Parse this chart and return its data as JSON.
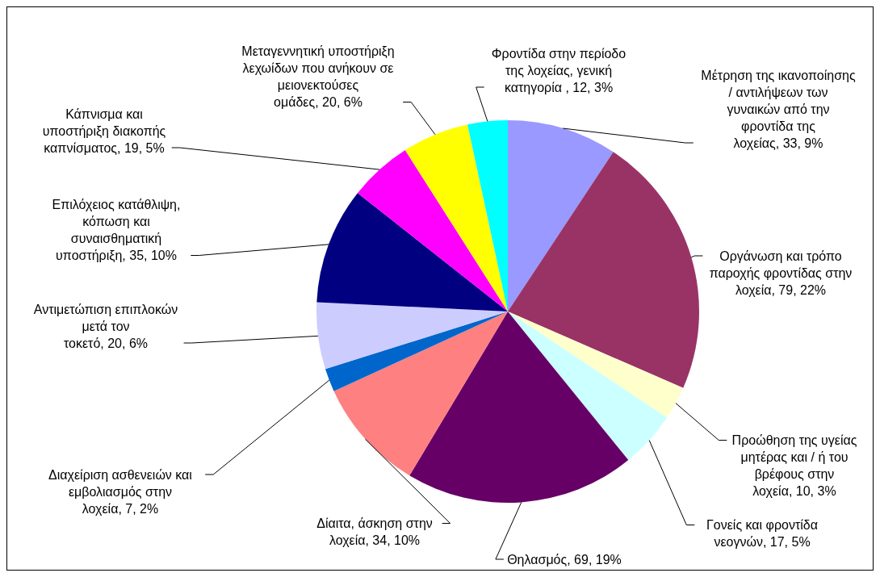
{
  "chart_data": {
    "type": "pie",
    "categories": [
      "Μέτρηση της ικανοποίησης / αντιλήψεων των γυναικών από την φροντίδα της λοχείας",
      "Οργάνωση και τρόπο παροχής φροντίδας στην λοχεία",
      "Προώθηση της υγείας μητέρας και / ή του βρέφους στην λοχεία",
      "Γονείς και φροντίδα νεογνών",
      "Θηλασμός",
      "Δίαιτα, άσκηση στην λοχεία",
      "Διαχείριση ασθενειών και εμβολιασμός στην λοχεία",
      "Αντιμετώπιση επιπλοκών μετά τον τοκετό",
      "Επιλόχειος κατάθλιψη, κόπωση και συναισθηματική υποστήριξη",
      "Κάπνισμα και υποστήριξη διακοπής καπνίσματος",
      "Μεταγεννητική υποστήριξη λεχωίδων που ανήκουν σε μειονεκτούσες ομάδες",
      "Φροντίδα στην περίοδο της λοχείας, γενική κατηγορία "
    ],
    "values": [
      33,
      79,
      10,
      17,
      69,
      34,
      7,
      20,
      35,
      19,
      20,
      12
    ],
    "value_labels": [
      "33, 9%",
      "79, 22%",
      "10, 3%",
      "17, 5%",
      "69, 19%",
      "34, 10%",
      "7, 2%",
      "20, 6%",
      "35, 10%",
      "19, 5%",
      "20, 6%",
      "12, 3%"
    ],
    "colors": [
      "#9999ff",
      "#993366",
      "#ffffcc",
      "#ccffff",
      "#660066",
      "#ff8080",
      "#0066cc",
      "#ccccff",
      "#000080",
      "#ff00ff",
      "#ffff00",
      "#00ffff"
    ]
  }
}
